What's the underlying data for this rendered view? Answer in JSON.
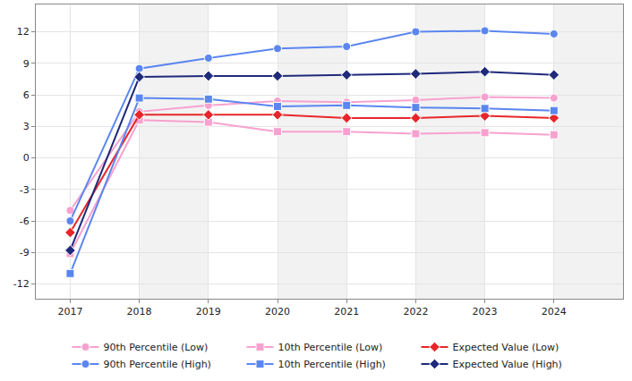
{
  "chart_data": {
    "type": "line",
    "categories": [
      "2017",
      "2018",
      "2019",
      "2020",
      "2021",
      "2022",
      "2023",
      "2024"
    ],
    "series": [
      {
        "name": "90th Percentile (Low)",
        "color": "#f7a1cf",
        "marker": "circle",
        "line_style": "solid",
        "values": [
          -5.0,
          4.4,
          5.0,
          5.4,
          5.3,
          5.5,
          5.8,
          5.7
        ]
      },
      {
        "name": "10th Percentile (Low)",
        "color": "#f7a1cf",
        "marker": "square",
        "line_style": "solid",
        "values": [
          -9.1,
          3.6,
          3.4,
          2.5,
          2.5,
          2.3,
          2.4,
          2.2
        ]
      },
      {
        "name": "Expected Value (Low)",
        "color": "#e8262a",
        "marker": "diamond",
        "line_style": "solid",
        "values": [
          -7.1,
          4.1,
          4.1,
          4.1,
          3.8,
          3.8,
          4.0,
          3.8
        ]
      },
      {
        "name": "90th Percentile (High)",
        "color": "#5b86f0",
        "marker": "circle",
        "line_style": "solid",
        "values": [
          -6.0,
          8.5,
          9.5,
          10.4,
          10.6,
          12.0,
          12.1,
          11.8
        ]
      },
      {
        "name": "10th Percentile (High)",
        "color": "#5b86f0",
        "marker": "square",
        "line_style": "solid",
        "values": [
          -11.0,
          5.7,
          5.6,
          4.9,
          5.0,
          4.8,
          4.7,
          4.5
        ]
      },
      {
        "name": "Expected Value (High)",
        "color": "#1f2a7a",
        "marker": "diamond",
        "line_style": "solid",
        "values": [
          -8.8,
          7.7,
          7.8,
          7.8,
          7.9,
          8.0,
          8.2,
          7.9
        ]
      }
    ],
    "ylim": [
      -13.4,
      14.6
    ],
    "yticks": [
      -12,
      -9,
      -6,
      -3,
      0,
      3,
      6,
      9,
      12
    ],
    "grid": true,
    "legend": "bottom"
  }
}
